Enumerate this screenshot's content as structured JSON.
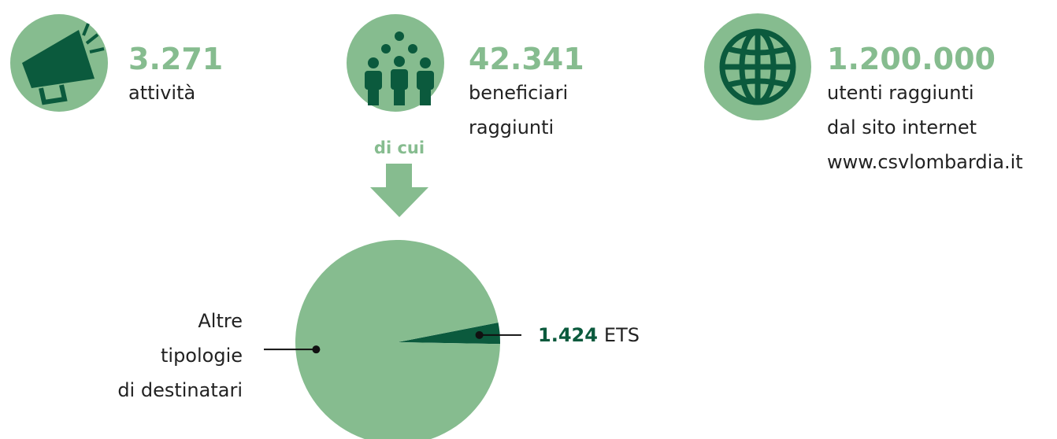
{
  "stats": [
    {
      "value": "3.271",
      "label": [
        "attività"
      ]
    },
    {
      "value": "42.341",
      "label": [
        "beneficiari",
        "raggiunti"
      ]
    },
    {
      "value": "1.200.000",
      "label": [
        "utenti raggiunti",
        "dal sito internet",
        "www.csvlombardia.it"
      ]
    }
  ],
  "connector": "di cui",
  "chart_data": {
    "type": "pie",
    "categories": [
      [
        "Altre",
        "tipologie",
        "di destinatari"
      ],
      [
        "ETS"
      ]
    ],
    "values": [
      40917,
      1424
    ],
    "value_labels": [
      null,
      "1.424"
    ],
    "colors": [
      "#86bc8f",
      "#0b5a3d"
    ]
  }
}
